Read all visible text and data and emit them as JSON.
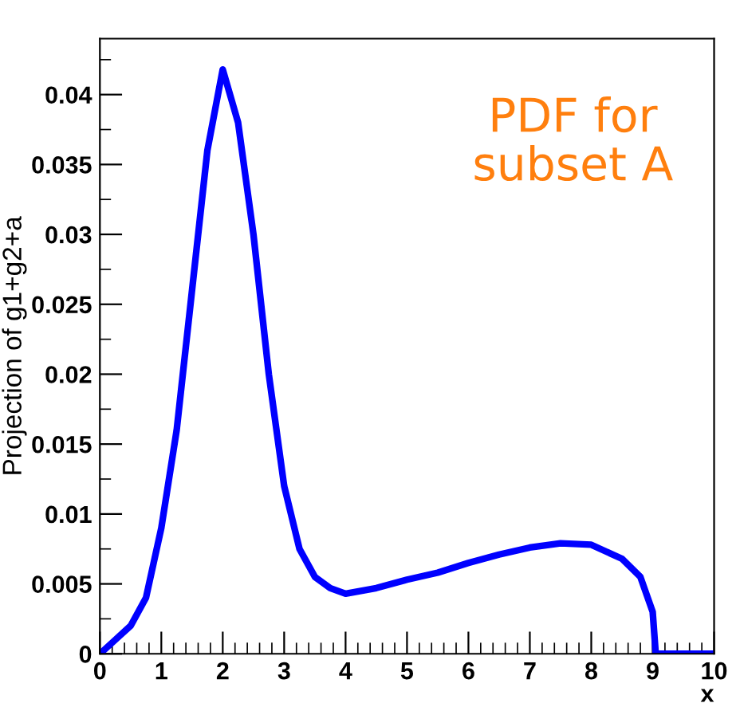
{
  "chart_data": {
    "type": "line",
    "ylabel": "Projection of g1+g2+a",
    "xlabel": "x",
    "annotations": [
      "PDF for\nsubset A"
    ],
    "x": [
      0,
      0.25,
      0.5,
      0.75,
      1,
      1.25,
      1.5,
      1.75,
      2,
      2.25,
      2.5,
      2.75,
      3,
      3.25,
      3.5,
      3.75,
      4,
      4.5,
      5,
      5.5,
      6,
      6.5,
      7,
      7.5,
      8,
      8.5,
      8.8,
      9.0,
      9.05,
      10
    ],
    "series": [
      {
        "color": "#0000ff",
        "values": [
          0,
          0.001,
          0.002,
          0.004,
          0.009,
          0.016,
          0.026,
          0.036,
          0.0418,
          0.038,
          0.03,
          0.02,
          0.012,
          0.0075,
          0.0055,
          0.0047,
          0.0043,
          0.0047,
          0.0053,
          0.0058,
          0.0065,
          0.0071,
          0.0076,
          0.0079,
          0.0078,
          0.0068,
          0.0055,
          0.003,
          0,
          0
        ]
      }
    ],
    "xlim": [
      0,
      10
    ],
    "ylim": [
      0,
      0.044
    ],
    "xticks": [
      0,
      1,
      2,
      3,
      4,
      5,
      6,
      7,
      8,
      9,
      10
    ],
    "yticks": [
      0,
      0.005,
      0.01,
      0.015,
      0.02,
      0.025,
      0.03,
      0.035,
      0.04
    ],
    "grid": false,
    "legend": false,
    "marker": "none",
    "line_style": "solid"
  }
}
